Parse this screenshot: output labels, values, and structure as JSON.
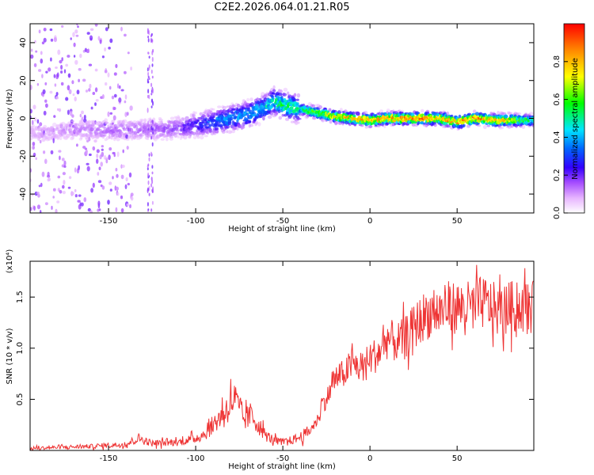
{
  "title": "C2E2.2026.064.01.21.R05",
  "chart_data": [
    {
      "type": "heatmap",
      "xlabel": "Height of straight line (km)",
      "ylabel": "Frequency (Hz)",
      "xlim": [
        -195,
        94
      ],
      "ylim": [
        -50,
        50
      ],
      "xticks": [
        -150,
        -100,
        -50,
        0,
        50
      ],
      "yticks": [
        -40,
        -20,
        0,
        20,
        40
      ],
      "colorbar": {
        "label": "Normalized spectral amplitude",
        "range": [
          0,
          1
        ],
        "ticks": [
          0.0,
          0.2,
          0.4,
          0.6,
          0.8
        ],
        "tick_labels": [
          "0.0",
          "0.2",
          "0.4",
          "0.6",
          "0.8"
        ]
      },
      "ridge": {
        "x": [
          -190,
          -170,
          -150,
          -130,
          -110,
          -90,
          -70,
          -60,
          -55,
          -50,
          -45,
          -40,
          -30,
          -20,
          -10,
          0,
          10,
          20,
          30,
          40,
          50,
          60,
          70,
          80,
          94
        ],
        "frequency": [
          -8,
          -6,
          -6,
          -6,
          -5,
          -2,
          2,
          6,
          9,
          7,
          6,
          5,
          3,
          1,
          0,
          -1,
          0,
          0,
          0,
          0,
          -2,
          0,
          -1,
          -1,
          -1
        ],
        "amplitude": [
          0.1,
          0.12,
          0.15,
          0.15,
          0.18,
          0.35,
          0.42,
          0.45,
          0.5,
          0.55,
          0.55,
          0.5,
          0.65,
          0.75,
          0.8,
          0.85,
          0.85,
          0.9,
          0.9,
          0.85,
          0.85,
          0.9,
          0.85,
          0.8,
          0.5
        ]
      }
    },
    {
      "type": "line",
      "xlabel": "Height of straight line (km)",
      "ylabel": "SNR (10 * v/v)",
      "y_multiplier_label": "(x10⁴)",
      "xlim": [
        -195,
        94
      ],
      "ylim": [
        0,
        18500
      ],
      "xticks": [
        -150,
        -100,
        -50,
        0,
        50
      ],
      "yticks": [
        5000,
        10000,
        15000
      ],
      "ytick_labels": [
        "0.5",
        "1.0",
        "1.5"
      ],
      "color": "#ee3333",
      "series": [
        {
          "x": [
            -195,
            -180,
            -160,
            -140,
            -133,
            -125,
            -110,
            -100,
            -95,
            -90,
            -85,
            -80,
            -78,
            -75,
            -72,
            -68,
            -64,
            -60,
            -55,
            -50,
            -45,
            -40,
            -35,
            -30,
            -28,
            -25,
            -20,
            -15,
            -10,
            -5,
            0,
            5,
            10,
            15,
            20,
            25,
            30,
            35,
            40,
            45,
            50,
            55,
            60,
            65,
            70,
            75,
            80,
            85,
            90,
            94
          ],
          "values": [
            200,
            300,
            400,
            600,
            1200,
            700,
            800,
            1200,
            1600,
            2500,
            3500,
            4500,
            5200,
            4000,
            3000,
            3500,
            2500,
            1500,
            1000,
            800,
            1000,
            1300,
            1800,
            3000,
            4500,
            5000,
            7000,
            7500,
            8500,
            8000,
            9000,
            9500,
            11000,
            10500,
            11000,
            12000,
            13000,
            13500,
            13500,
            14000,
            14000,
            14000,
            14000,
            14500,
            14000,
            13500,
            14000,
            14000,
            14000,
            14000
          ]
        }
      ]
    }
  ]
}
